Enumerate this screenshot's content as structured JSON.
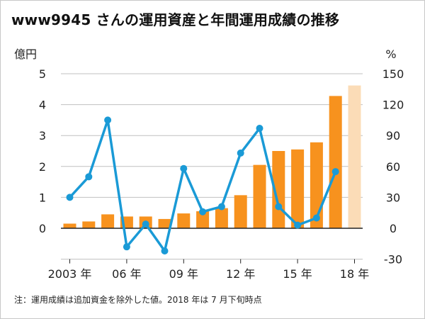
{
  "title": "www9945 さんの運用資産と年間運用成績の推移",
  "note": "注：運用成績は追加資金を除外した値。2018 年は 7 月下旬時点",
  "colors": {
    "bar": "#f7921e",
    "bar_partial": "#fbdcb7",
    "line": "#1a9ad6",
    "grid": "#c0c0c0",
    "axis": "#222222"
  },
  "chart_data": {
    "type": "bar",
    "title": "www9945 さんの運用資産と年間運用成績の推移",
    "left_axis_unit": "億円",
    "right_axis_unit": "%",
    "left_ylim": [
      0,
      5
    ],
    "right_ylim": [
      -30,
      150
    ],
    "left_ticks": [
      "5",
      "4",
      "3",
      "2",
      "1",
      "0"
    ],
    "right_ticks": [
      "150",
      "120",
      "90",
      "60",
      "30",
      "0",
      "-30"
    ],
    "x_tick_labels": [
      {
        "year": 2003,
        "label": "2003 年"
      },
      {
        "year": 2006,
        "label": "06 年"
      },
      {
        "year": 2009,
        "label": "09 年"
      },
      {
        "year": 2012,
        "label": "12 年"
      },
      {
        "year": 2015,
        "label": "15 年"
      },
      {
        "year": 2018,
        "label": "18 年"
      }
    ],
    "grid": true,
    "series": [
      {
        "kind": "bar",
        "x": [
          2003,
          2004,
          2005,
          2006,
          2007,
          2008,
          2009,
          2010,
          2011,
          2012,
          2013,
          2014,
          2015,
          2016,
          2017,
          2018
        ],
        "values": [
          0.15,
          0.22,
          0.45,
          0.38,
          0.38,
          0.3,
          0.48,
          0.55,
          0.65,
          1.07,
          2.05,
          2.5,
          2.55,
          2.78,
          4.28,
          4.62
        ],
        "partial_index": 15
      },
      {
        "kind": "line",
        "x": [
          2003,
          2004,
          2005,
          2006,
          2007,
          2008,
          2009,
          2010,
          2011,
          2012,
          2013,
          2014,
          2015,
          2016,
          2017
        ],
        "values": [
          30,
          50,
          105,
          -18,
          4,
          -22,
          58,
          16,
          21,
          73,
          97,
          21,
          3,
          10,
          55
        ]
      }
    ]
  }
}
